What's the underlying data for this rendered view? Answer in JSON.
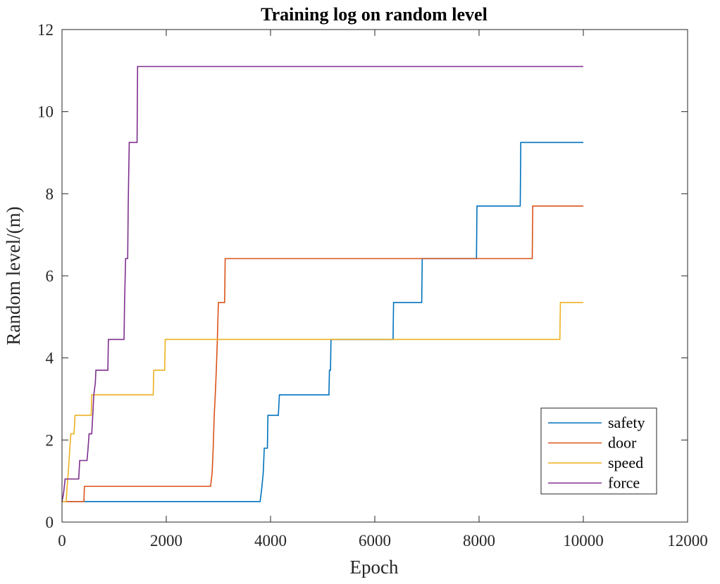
{
  "chart_data": {
    "type": "line",
    "title": "Training log on random level",
    "xlabel": "Epoch",
    "ylabel": "Random level/(m)",
    "xlim": [
      0,
      12000
    ],
    "ylim": [
      0,
      12
    ],
    "xticks": [
      0,
      2000,
      4000,
      6000,
      8000,
      10000,
      12000
    ],
    "yticks": [
      0,
      2,
      4,
      6,
      8,
      10,
      12
    ],
    "grid": false,
    "legend_position": "bottom-right",
    "series": [
      {
        "name": "safety",
        "color": "#0072BD",
        "points": [
          [
            0,
            0.5
          ],
          [
            3800,
            0.5
          ],
          [
            3830,
            0.8
          ],
          [
            3860,
            1.2
          ],
          [
            3880,
            1.8
          ],
          [
            3940,
            1.8
          ],
          [
            3950,
            2.6
          ],
          [
            4150,
            2.6
          ],
          [
            4170,
            3.1
          ],
          [
            5120,
            3.1
          ],
          [
            5130,
            3.7
          ],
          [
            5150,
            3.7
          ],
          [
            5160,
            4.45
          ],
          [
            6350,
            4.45
          ],
          [
            6360,
            5.35
          ],
          [
            6900,
            5.35
          ],
          [
            6910,
            6.42
          ],
          [
            7950,
            6.42
          ],
          [
            7960,
            7.7
          ],
          [
            8790,
            7.7
          ],
          [
            8800,
            9.25
          ],
          [
            10000,
            9.25
          ]
        ]
      },
      {
        "name": "door",
        "color": "#D95319",
        "points": [
          [
            0,
            0.5
          ],
          [
            420,
            0.5
          ],
          [
            430,
            0.87
          ],
          [
            2850,
            0.87
          ],
          [
            2880,
            1.2
          ],
          [
            2900,
            1.8
          ],
          [
            2920,
            2.6
          ],
          [
            2940,
            3.1
          ],
          [
            2960,
            3.7
          ],
          [
            2980,
            4.45
          ],
          [
            3000,
            5.35
          ],
          [
            3120,
            5.35
          ],
          [
            3130,
            6.42
          ],
          [
            9020,
            6.42
          ],
          [
            9030,
            7.7
          ],
          [
            10000,
            7.7
          ]
        ]
      },
      {
        "name": "speed",
        "color": "#EDB120",
        "points": [
          [
            0,
            0.5
          ],
          [
            80,
            0.5
          ],
          [
            100,
            0.9
          ],
          [
            120,
            1.2
          ],
          [
            150,
            1.8
          ],
          [
            170,
            2.15
          ],
          [
            230,
            2.15
          ],
          [
            250,
            2.6
          ],
          [
            560,
            2.6
          ],
          [
            570,
            3.1
          ],
          [
            1750,
            3.1
          ],
          [
            1760,
            3.7
          ],
          [
            1970,
            3.7
          ],
          [
            1980,
            4.45
          ],
          [
            9550,
            4.45
          ],
          [
            9560,
            5.35
          ],
          [
            10000,
            5.35
          ]
        ]
      },
      {
        "name": "force",
        "color": "#7E2F8E",
        "points": [
          [
            0,
            0.5
          ],
          [
            30,
            0.7
          ],
          [
            60,
            1.05
          ],
          [
            320,
            1.05
          ],
          [
            340,
            1.5
          ],
          [
            480,
            1.5
          ],
          [
            500,
            1.8
          ],
          [
            520,
            2.15
          ],
          [
            570,
            2.15
          ],
          [
            590,
            2.6
          ],
          [
            610,
            3.1
          ],
          [
            640,
            3.4
          ],
          [
            650,
            3.7
          ],
          [
            880,
            3.7
          ],
          [
            890,
            4.45
          ],
          [
            1190,
            4.45
          ],
          [
            1200,
            5.35
          ],
          [
            1220,
            6.42
          ],
          [
            1260,
            6.42
          ],
          [
            1270,
            7.7
          ],
          [
            1280,
            8.5
          ],
          [
            1290,
            9.25
          ],
          [
            1440,
            9.25
          ],
          [
            1450,
            11.1
          ],
          [
            10000,
            11.1
          ]
        ]
      }
    ]
  }
}
